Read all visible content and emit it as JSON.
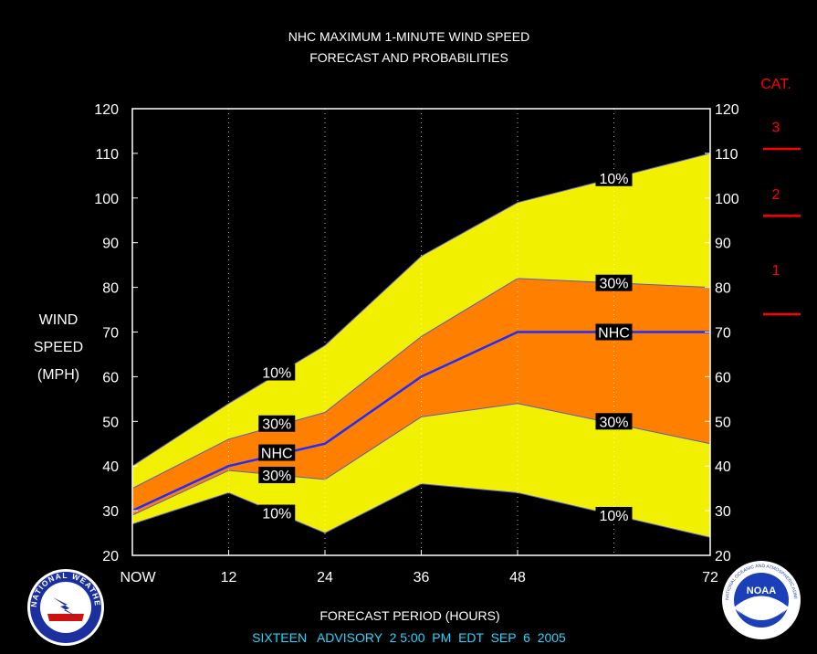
{
  "chart_data": {
    "type": "area",
    "title": "NHC MAXIMUM 1-MINUTE WIND SPEED",
    "subtitle": "FORECAST AND PROBABILITIES",
    "xlabel": "FORECAST PERIOD (HOURS)",
    "ylabel": [
      "WIND",
      "SPEED",
      "(MPH)"
    ],
    "footer": "SIXTEEN   ADVISORY  2 5:00  PM  EDT  SEP  6  2005",
    "xlim": [
      0,
      72
    ],
    "ylim": [
      20,
      120
    ],
    "x_ticks": [
      0,
      12,
      24,
      36,
      48,
      72
    ],
    "x_tick_labels": [
      "NOW",
      "12",
      "24",
      "36",
      "48",
      "72"
    ],
    "y_ticks": [
      20,
      30,
      40,
      50,
      60,
      70,
      80,
      90,
      100,
      110,
      120
    ],
    "grid_x": [
      12,
      24,
      36,
      48,
      60
    ],
    "x": [
      0,
      12,
      24,
      36,
      48,
      72
    ],
    "series": [
      {
        "name": "10%",
        "band": "upper",
        "values": [
          40,
          54,
          67,
          87,
          99,
          110
        ]
      },
      {
        "name": "30%",
        "band": "upper",
        "values": [
          35,
          46,
          52,
          69,
          82,
          80
        ]
      },
      {
        "name": "NHC",
        "band": "forecast",
        "values": [
          30,
          40,
          45,
          60,
          70,
          70
        ]
      },
      {
        "name": "30%",
        "band": "lower",
        "values": [
          29,
          39,
          37,
          51,
          54,
          45
        ]
      },
      {
        "name": "10%",
        "band": "lower",
        "values": [
          27,
          34,
          25,
          36,
          34,
          24
        ]
      }
    ],
    "labels": [
      {
        "text": "10%",
        "x": 18,
        "y": 61
      },
      {
        "text": "30%",
        "x": 18,
        "y": 49.5
      },
      {
        "text": "NHC",
        "x": 18,
        "y": 43
      },
      {
        "text": "30%",
        "x": 18,
        "y": 38
      },
      {
        "text": "10%",
        "x": 18,
        "y": 29.5
      },
      {
        "text": "10%",
        "x": 60,
        "y": 104.5
      },
      {
        "text": "30%",
        "x": 60,
        "y": 81
      },
      {
        "text": "NHC",
        "x": 60,
        "y": 70
      },
      {
        "text": "30%",
        "x": 60,
        "y": 50
      },
      {
        "text": "10%",
        "x": 60,
        "y": 29
      }
    ],
    "category_scale": {
      "title": "CAT.",
      "labels": [
        {
          "text": "3",
          "y": 116
        },
        {
          "text": "2",
          "y": 101
        },
        {
          "text": "1",
          "y": 84
        }
      ],
      "boundaries": [
        111,
        96,
        74
      ]
    },
    "colors": {
      "outer_band": "#f0f000",
      "inner_band": "#ff8000",
      "forecast_line": "#1f2bff",
      "category": "#ff0000",
      "background": "#000000",
      "footer": "#20d8ff",
      "text": "#ffffff"
    }
  },
  "logos": {
    "left": {
      "name": "National Weather Service",
      "text": "NATIONAL WEATHER SERVICE"
    },
    "right": {
      "name": "NOAA",
      "text": "NOAA",
      "ring_text": "NATIONAL OCEANIC AND ATMOSPHERIC ADMINISTRATION · U.S. DEPARTMENT OF COMMERCE"
    }
  }
}
